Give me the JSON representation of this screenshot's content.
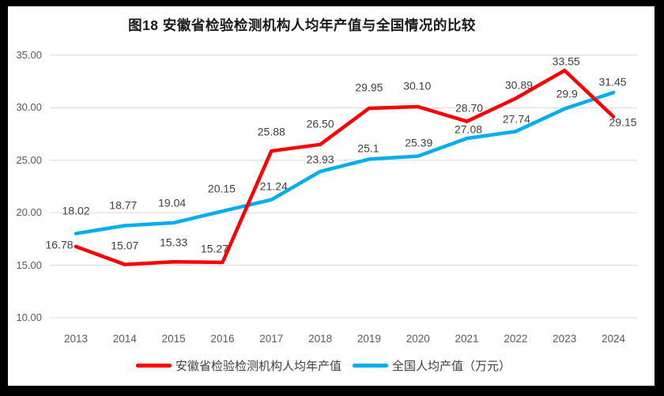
{
  "title": "图18 安徽省检验检测机构人均年产值与全国情况的比较",
  "chart_data": {
    "type": "line",
    "title": "图18 安徽省检验检测机构人均年产值与全国情况的比较",
    "categories": [
      "2013",
      "2014",
      "2015",
      "2016",
      "2017",
      "2018",
      "2019",
      "2020",
      "2021",
      "2022",
      "2023",
      "2024"
    ],
    "series": [
      {
        "name": "安徽省检验检测机构人均年产值",
        "color": "#FF0000",
        "values": [
          16.78,
          15.07,
          15.33,
          15.27,
          25.88,
          26.5,
          29.95,
          30.1,
          28.7,
          30.89,
          33.55,
          29.15
        ],
        "labels": [
          "16.78",
          "15.07",
          "15.33",
          "15.27",
          "25.88",
          "26.50",
          "29.95",
          "30.10",
          "28.70",
          "30.89",
          "33.55",
          "29.15"
        ]
      },
      {
        "name": "全国人均产值（万元）",
        "color": "#00AEEF",
        "values": [
          18.02,
          18.77,
          19.04,
          20.15,
          21.24,
          23.93,
          25.1,
          25.39,
          27.08,
          27.74,
          29.9,
          31.45
        ],
        "labels": [
          "18.02",
          "18.77",
          "19.04",
          "20.15",
          "21.24",
          "23.93",
          "25.1",
          "25.39",
          "27.08",
          "27.74",
          "29.9",
          "31.45"
        ]
      }
    ],
    "xlabel": "",
    "ylabel": "",
    "ylim": [
      10,
      35
    ],
    "yticks": [
      "10.00",
      "15.00",
      "20.00",
      "25.00",
      "30.00",
      "35.00"
    ],
    "grid": true,
    "gridline_color": "#D9D9D9",
    "tick_label_color": "#595959",
    "data_label_color": "#404040",
    "legend_position": "bottom"
  }
}
